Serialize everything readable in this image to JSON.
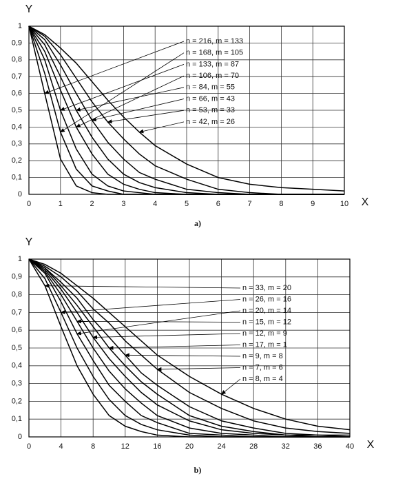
{
  "chart_data": [
    {
      "type": "line",
      "caption": "a)",
      "x_label": "X",
      "y_label": "Y",
      "x": [
        0,
        0.5,
        1,
        1.5,
        2,
        2.5,
        3,
        3.5,
        4,
        5,
        6,
        7,
        8,
        9,
        10
      ],
      "xlim": [
        0,
        10
      ],
      "xticks": [
        0,
        1,
        2,
        3,
        4,
        5,
        6,
        7,
        8,
        9,
        10
      ],
      "ylim": [
        0,
        1
      ],
      "yticks": [
        0,
        {
          "value": 0.1,
          "label": "0,1"
        },
        {
          "value": 0.2,
          "label": "0,2"
        },
        {
          "value": 0.3,
          "label": "0,3"
        },
        {
          "value": 0.4,
          "label": "0,4"
        },
        {
          "value": 0.5,
          "label": "0,5"
        },
        {
          "value": 0.6,
          "label": "0,6"
        },
        {
          "value": 0.7,
          "label": "0,7"
        },
        {
          "value": 0.8,
          "label": "0,8"
        },
        {
          "value": 0.9,
          "label": "0,9"
        },
        1
      ],
      "grid": true,
      "series": [
        {
          "name": "n = 216, m = 133",
          "color": "#000000",
          "values": [
            1,
            0.6,
            0.21,
            0.05,
            0.01,
            0,
            0,
            0,
            0,
            0,
            0,
            0,
            0,
            0,
            0
          ]
        },
        {
          "name": "n = 168, m = 105",
          "color": "#000000",
          "values": [
            1,
            0.72,
            0.37,
            0.15,
            0.05,
            0.02,
            0,
            0,
            0,
            0,
            0,
            0,
            0,
            0,
            0
          ]
        },
        {
          "name": "n = 133, m = 87",
          "color": "#000000",
          "values": [
            1,
            0.8,
            0.5,
            0.27,
            0.12,
            0.05,
            0.02,
            0.01,
            0,
            0,
            0,
            0,
            0,
            0,
            0
          ]
        },
        {
          "name": "n = 106, m = 70",
          "color": "#000000",
          "values": [
            1,
            0.85,
            0.62,
            0.4,
            0.24,
            0.12,
            0.06,
            0.03,
            0.01,
            0,
            0,
            0,
            0,
            0,
            0
          ]
        },
        {
          "name": "n = 84, m = 55",
          "color": "#000000",
          "values": [
            1,
            0.89,
            0.7,
            0.5,
            0.34,
            0.21,
            0.12,
            0.07,
            0.04,
            0.01,
            0,
            0,
            0,
            0,
            0
          ]
        },
        {
          "name": "n = 66, m = 43",
          "color": "#000000",
          "values": [
            1,
            0.92,
            0.77,
            0.6,
            0.44,
            0.31,
            0.21,
            0.13,
            0.09,
            0.03,
            0.01,
            0,
            0,
            0,
            0
          ]
        },
        {
          "name": "n = 53, m = 33",
          "color": "#000000",
          "values": [
            1,
            0.94,
            0.83,
            0.69,
            0.55,
            0.43,
            0.33,
            0.24,
            0.17,
            0.09,
            0.03,
            0.01,
            0,
            0,
            0
          ]
        },
        {
          "name": "n = 42, m = 26",
          "color": "#000000",
          "values": [
            1,
            0.95,
            0.87,
            0.78,
            0.67,
            0.56,
            0.46,
            0.37,
            0.29,
            0.18,
            0.1,
            0.06,
            0.04,
            0.03,
            0.02
          ]
        }
      ]
    },
    {
      "type": "line",
      "caption": "b)",
      "x_label": "X",
      "y_label": "Y",
      "x": [
        0,
        2,
        4,
        6,
        8,
        10,
        12,
        14,
        16,
        20,
        24,
        28,
        32,
        36,
        40
      ],
      "xlim": [
        0,
        40
      ],
      "xticks": [
        0,
        4,
        8,
        12,
        16,
        20,
        24,
        28,
        32,
        36,
        40
      ],
      "ylim": [
        0,
        1
      ],
      "yticks": [
        0,
        {
          "value": 0.1,
          "label": "0,1"
        },
        {
          "value": 0.2,
          "label": "0,2"
        },
        {
          "value": 0.3,
          "label": "0,3"
        },
        {
          "value": 0.4,
          "label": "0,4"
        },
        {
          "value": 0.5,
          "label": "0,5"
        },
        {
          "value": 0.6,
          "label": "0,6"
        },
        {
          "value": 0.7,
          "label": "0,7"
        },
        {
          "value": 0.8,
          "label": "0,8"
        },
        {
          "value": 0.9,
          "label": "0,9"
        },
        1
      ],
      "grid": true,
      "series": [
        {
          "name": "n = 33, m = 20",
          "color": "#000000",
          "values": [
            1,
            0.85,
            0.62,
            0.4,
            0.24,
            0.12,
            0.06,
            0.03,
            0.01,
            0,
            0,
            0,
            0,
            0,
            0
          ]
        },
        {
          "name": "n = 26, m = 16",
          "color": "#000000",
          "values": [
            1,
            0.89,
            0.7,
            0.5,
            0.34,
            0.21,
            0.12,
            0.07,
            0.04,
            0.01,
            0,
            0,
            0,
            0,
            0
          ]
        },
        {
          "name": "n = 20, m = 14",
          "color": "#000000",
          "values": [
            1,
            0.92,
            0.76,
            0.58,
            0.43,
            0.29,
            0.2,
            0.12,
            0.08,
            0.02,
            0.01,
            0,
            0,
            0,
            0
          ]
        },
        {
          "name": "n = 15, m = 12",
          "color": "#000000",
          "values": [
            1,
            0.93,
            0.8,
            0.65,
            0.5,
            0.37,
            0.27,
            0.19,
            0.12,
            0.05,
            0.02,
            0.01,
            0,
            0,
            0
          ]
        },
        {
          "name": "n = 12, m = 9",
          "color": "#000000",
          "values": [
            1,
            0.94,
            0.83,
            0.7,
            0.56,
            0.44,
            0.34,
            0.25,
            0.18,
            0.09,
            0.04,
            0.02,
            0.01,
            0,
            0
          ]
        },
        {
          "name": "n = 17, m = 1",
          "color": "#000000",
          "values": [
            1,
            0.95,
            0.85,
            0.74,
            0.62,
            0.5,
            0.4,
            0.31,
            0.24,
            0.12,
            0.06,
            0.03,
            0.01,
            0.01,
            0
          ]
        },
        {
          "name": "n = 9, m = 8",
          "color": "#000000",
          "values": [
            1,
            0.95,
            0.87,
            0.78,
            0.66,
            0.56,
            0.46,
            0.36,
            0.29,
            0.17,
            0.09,
            0.05,
            0.02,
            0.01,
            0.01
          ]
        },
        {
          "name": "n = 7, m = 6",
          "color": "#000000",
          "values": [
            1,
            0.96,
            0.9,
            0.82,
            0.72,
            0.64,
            0.54,
            0.46,
            0.38,
            0.25,
            0.16,
            0.09,
            0.05,
            0.03,
            0.02
          ]
        },
        {
          "name": "n = 8, m = 4",
          "color": "#000000",
          "values": [
            1,
            0.97,
            0.92,
            0.85,
            0.78,
            0.7,
            0.62,
            0.54,
            0.46,
            0.34,
            0.24,
            0.16,
            0.1,
            0.06,
            0.04
          ]
        }
      ]
    }
  ]
}
